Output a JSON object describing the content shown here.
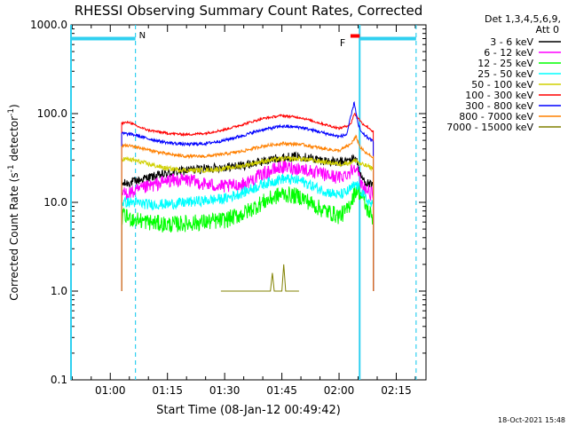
{
  "chart_data": {
    "type": "line",
    "title": "RHESSI Observing Summary Count Rates, Corrected",
    "xlabel": "Start Time (08-Jan-12 00:49:42)",
    "ylabel": "Corrected Count Rate (s",
    "ylabel_sup": "-1",
    "ylabel_mid": " detector",
    "ylabel_end": ")",
    "yscale": "log",
    "ylim": [
      0.1,
      1000.0
    ],
    "xlim_minutes": [
      49.7,
      142.8
    ],
    "x_ticks": [
      {
        "label": "01:00",
        "minute": 60
      },
      {
        "label": "01:15",
        "minute": 75
      },
      {
        "label": "01:30",
        "minute": 90
      },
      {
        "label": "01:45",
        "minute": 105
      },
      {
        "label": "02:00",
        "minute": 120
      },
      {
        "label": "02:15",
        "minute": 135
      }
    ],
    "y_ticks": [
      {
        "label": "0.1",
        "value": 0.1
      },
      {
        "label": "1.0",
        "value": 1.0
      },
      {
        "label": "10.0",
        "value": 10.0
      },
      {
        "label": "100.0",
        "value": 100.0
      },
      {
        "label": "1000.0",
        "value": 1000.0
      }
    ],
    "legend_header": [
      "Det 1,3,4,5,6,9,",
      "Att 0"
    ],
    "legend_placement": "right",
    "annotations": [
      {
        "label": "N",
        "color": "#30d0f0"
      },
      {
        "label": "F",
        "color": "#ff0000"
      }
    ],
    "night_bars": [
      {
        "start": 49.7,
        "end": 66.6
      },
      {
        "start": 125.4,
        "end": 140.2
      }
    ],
    "flare_bar": {
      "start": 123.0,
      "end": 125.4,
      "y": 750
    },
    "saa_lines": [
      {
        "minute": 49.7,
        "style": "solid"
      },
      {
        "minute": 66.6,
        "style": "dashed"
      },
      {
        "minute": 125.4,
        "style": "solid"
      },
      {
        "minute": 140.2,
        "style": "dashed"
      }
    ],
    "footer_date": "18-Oct-2021 15:48",
    "series": [
      {
        "name": "3 - 6 keV",
        "color": "#000000",
        "x": [
          63,
          66,
          70,
          75,
          80,
          85,
          90,
          95,
          100,
          105,
          110,
          115,
          120,
          123,
          124.5,
          125.5,
          127,
          129
        ],
        "y": [
          16,
          17,
          19,
          21,
          23,
          24,
          25,
          26,
          29,
          32,
          33,
          30,
          28,
          30,
          32,
          20,
          17,
          15
        ]
      },
      {
        "name": "6 - 12 keV",
        "color": "#ff00ff",
        "x": [
          63,
          66,
          70,
          75,
          80,
          85,
          90,
          95,
          100,
          105,
          110,
          115,
          120,
          123,
          124.5,
          125.5,
          127,
          129
        ],
        "y": [
          12.5,
          13,
          15,
          17.5,
          18,
          16,
          15,
          16,
          21,
          25,
          24,
          21,
          19,
          22,
          27,
          17,
          14,
          12
        ]
      },
      {
        "name": "12 - 25 keV",
        "color": "#00ff00",
        "x": [
          63,
          66,
          70,
          75,
          80,
          85,
          90,
          95,
          100,
          105,
          110,
          115,
          120,
          122,
          124.5,
          125.5,
          127,
          129
        ],
        "y": [
          7,
          6.5,
          6,
          5.6,
          5.8,
          6,
          6.3,
          7.5,
          10,
          12.5,
          11.5,
          8.5,
          7,
          8,
          14,
          13,
          9,
          6.5
        ]
      },
      {
        "name": "25 - 50 keV",
        "color": "#00ffff",
        "x": [
          63,
          66,
          70,
          75,
          80,
          85,
          90,
          95,
          100,
          105,
          110,
          115,
          120,
          122,
          124.5,
          125.5,
          127,
          129
        ],
        "y": [
          10,
          10,
          9.5,
          9.5,
          10,
          10.5,
          11,
          13,
          16,
          18.5,
          17.5,
          14,
          12,
          13,
          16,
          14,
          11,
          9
        ]
      },
      {
        "name": "50 - 100 keV",
        "color": "#d0d000",
        "x": [
          63,
          66,
          70,
          75,
          80,
          85,
          90,
          95,
          100,
          105,
          110,
          115,
          120,
          123,
          124.5,
          125.5,
          127,
          129
        ],
        "y": [
          31,
          30,
          27,
          24,
          23,
          23,
          24,
          26,
          29,
          31,
          31,
          29,
          27,
          28,
          30,
          27,
          26,
          24
        ]
      },
      {
        "name": "100 - 300 keV",
        "color": "#ff0000",
        "x": [
          63,
          65,
          67,
          70,
          75,
          80,
          85,
          90,
          95,
          100,
          105,
          110,
          115,
          120,
          123,
          124,
          125,
          126,
          128,
          129
        ],
        "y": [
          78,
          80,
          72,
          65,
          60,
          58,
          60,
          66,
          76,
          88,
          95,
          90,
          78,
          68,
          75,
          100,
          90,
          78,
          68,
          62
        ]
      },
      {
        "name": "300 - 800 keV",
        "color": "#0000ff",
        "x": [
          63,
          66,
          70,
          75,
          80,
          85,
          90,
          95,
          100,
          105,
          110,
          115,
          120,
          122,
          124,
          125,
          126,
          128,
          129
        ],
        "y": [
          60,
          58,
          52,
          47,
          45,
          46,
          50,
          57,
          66,
          72,
          70,
          62,
          55,
          58,
          135,
          75,
          60,
          52,
          48
        ]
      },
      {
        "name": "800 - 7000 keV",
        "color": "#ff8000",
        "x": [
          63,
          66,
          70,
          75,
          80,
          85,
          90,
          95,
          100,
          105,
          110,
          115,
          120,
          123,
          124.5,
          125.5,
          127,
          129
        ],
        "y": [
          44,
          43,
          39,
          35,
          33,
          33,
          35,
          38,
          43,
          46,
          45,
          41,
          38,
          45,
          55,
          42,
          36,
          32
        ]
      },
      {
        "name": "7000 - 15000 keV",
        "color": "#808000",
        "x": [
          89,
          92,
          95,
          100,
          102,
          102.5,
          103,
          104,
          105,
          105.5,
          106,
          107,
          108,
          109.5
        ],
        "y": [
          1.0,
          1.0,
          1.0,
          1.0,
          1.0,
          1.6,
          1.0,
          1.0,
          1.0,
          2.0,
          1.0,
          1.0,
          1.0,
          1.0
        ]
      }
    ]
  }
}
